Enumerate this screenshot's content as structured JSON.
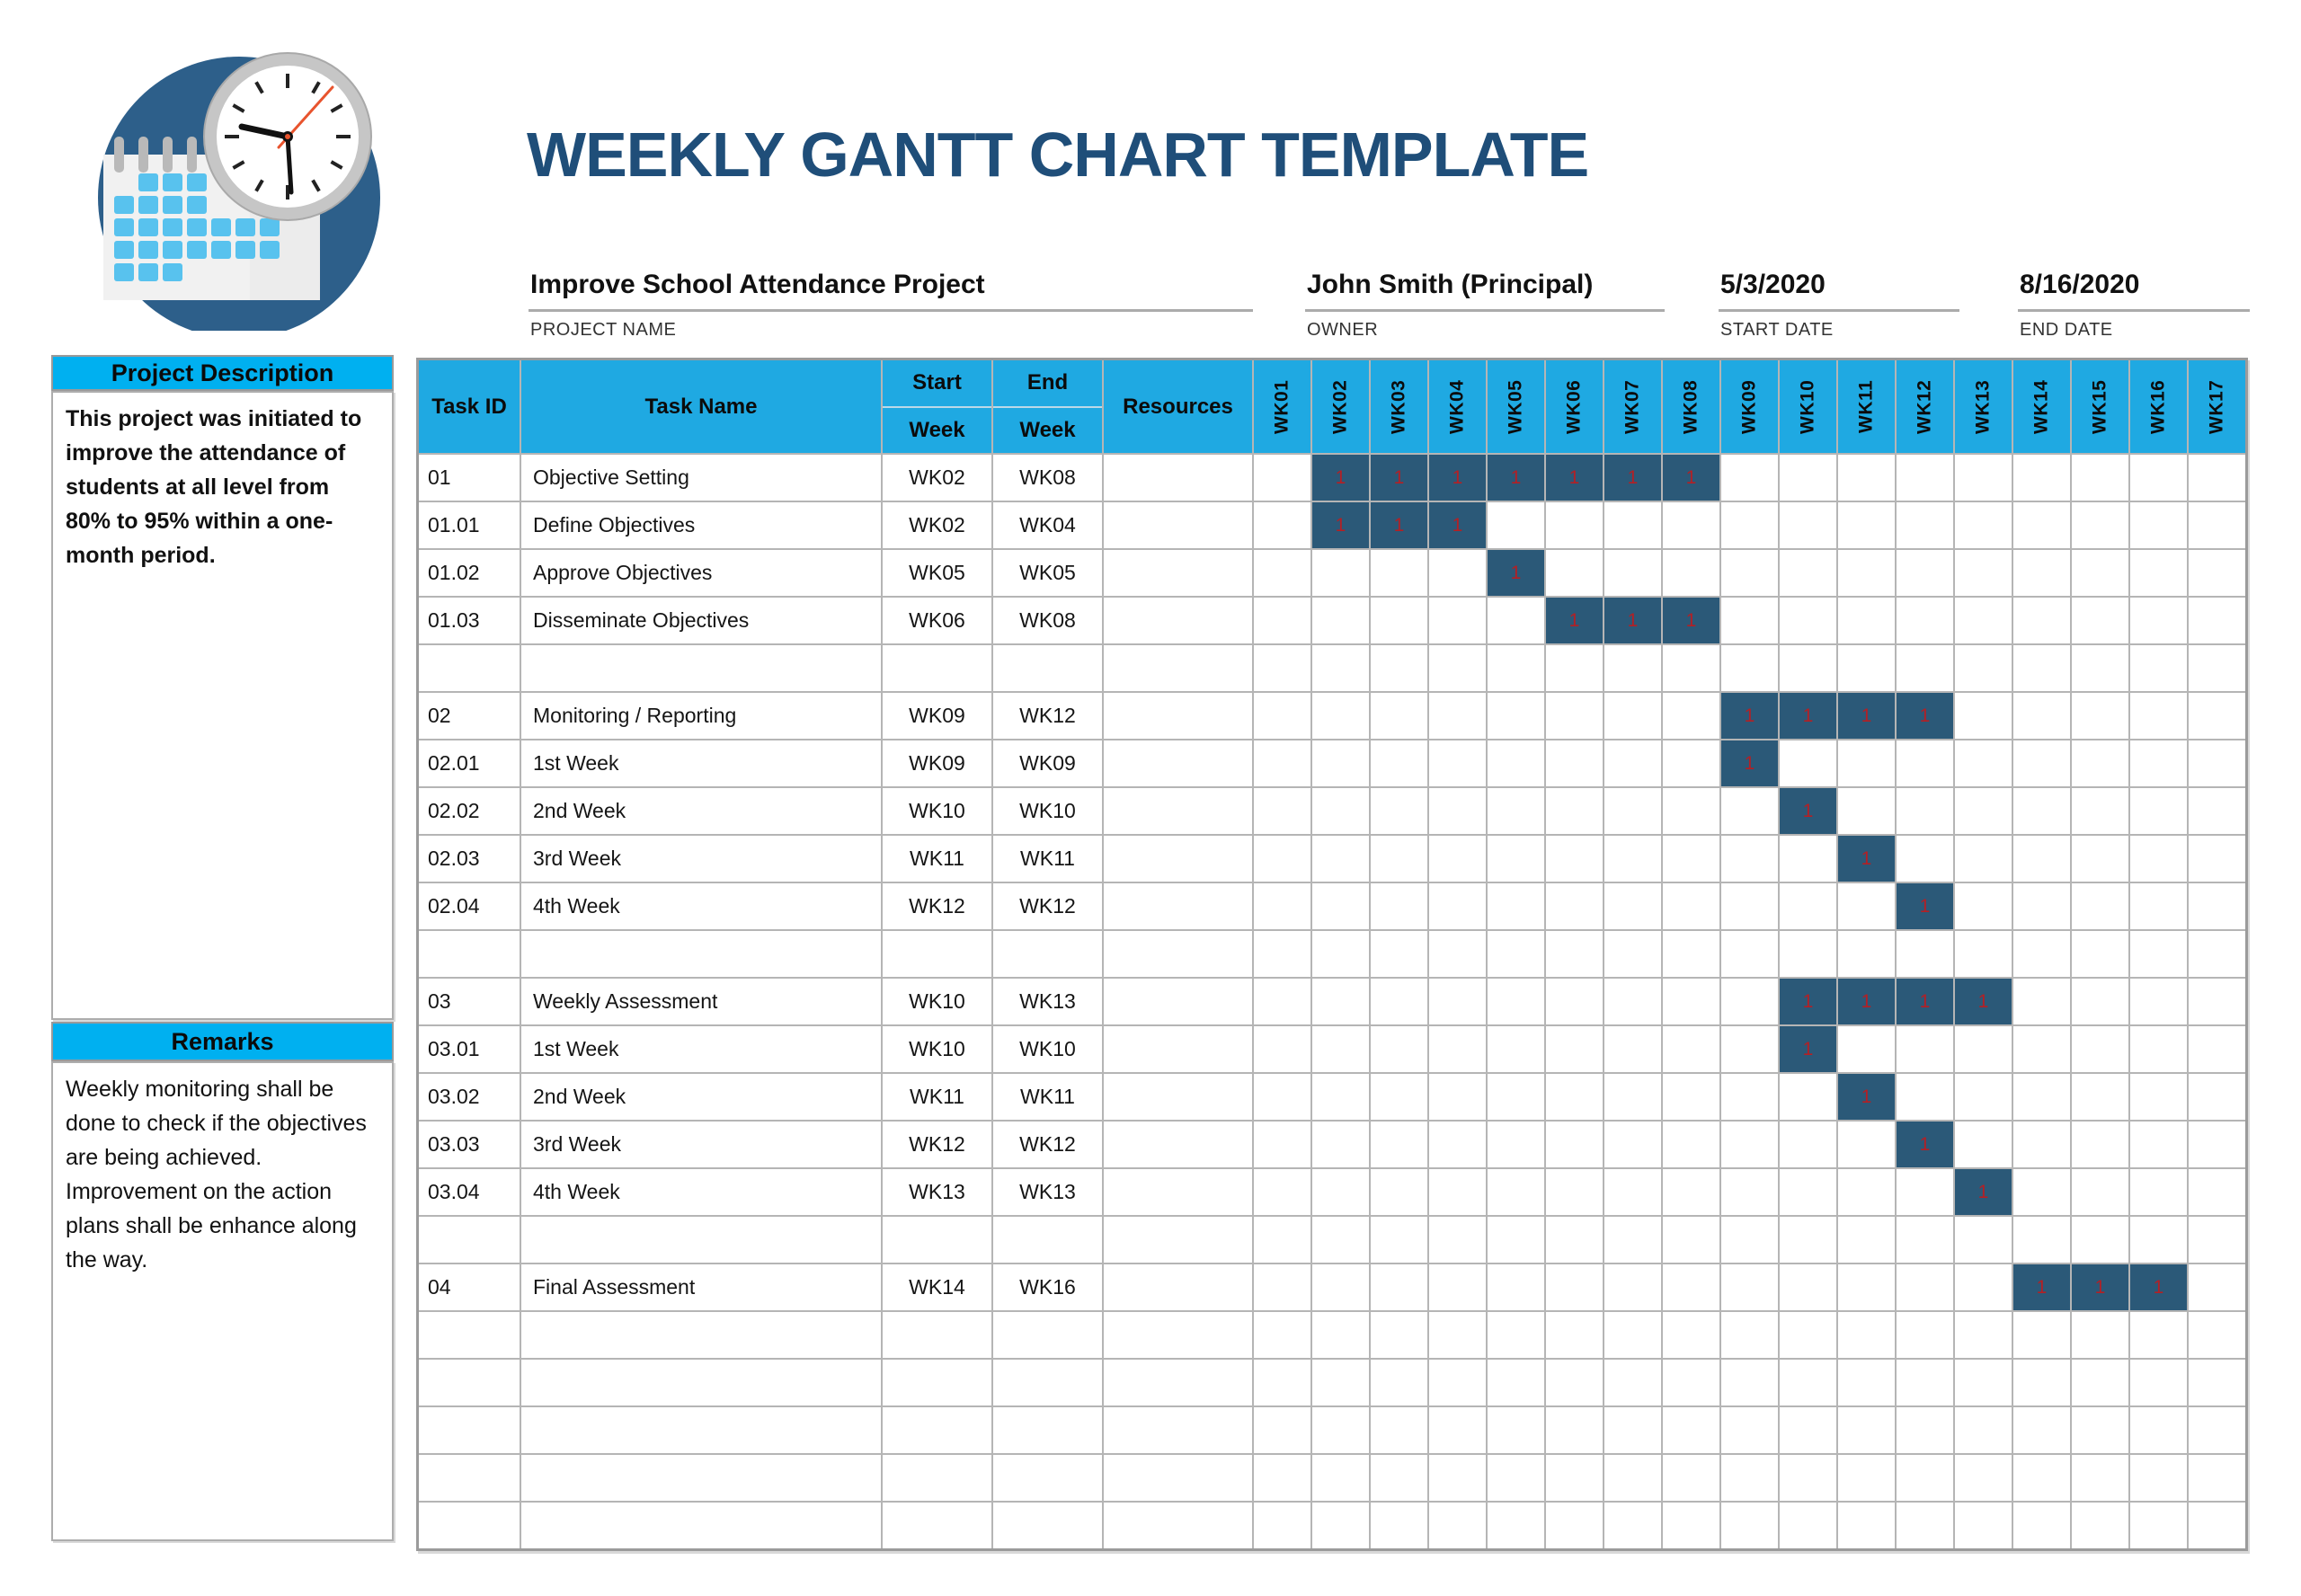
{
  "header": {
    "title": "WEEKLY GANTT CHART TEMPLATE",
    "fields": [
      {
        "value": "Improve School Attendance Project",
        "label": "PROJECT NAME"
      },
      {
        "value": "John Smith (Principal)",
        "label": "OWNER"
      },
      {
        "value": "5/3/2020",
        "label": "START DATE"
      },
      {
        "value": "8/16/2020",
        "label": "END DATE"
      }
    ]
  },
  "sidebar": {
    "description": {
      "title": "Project Description",
      "body": "This project was initiated to improve the attendance of students at all level from 80% to 95% within a one-month period."
    },
    "remarks": {
      "title": "Remarks",
      "lines": [
        "Weekly monitoring shall be done to check if the objectives are being achieved.",
        "Improvement on the action plans shall be enhance along the way."
      ]
    }
  },
  "table": {
    "columns": [
      {
        "label": "Task ID"
      },
      {
        "label": "Task Name"
      },
      {
        "label": "Start",
        "label2": "Week"
      },
      {
        "label": "End",
        "label2": "Week"
      },
      {
        "label": "Resources"
      }
    ],
    "weeks": [
      "WK01",
      "WK02",
      "WK03",
      "WK04",
      "WK05",
      "WK06",
      "WK07",
      "WK08",
      "WK09",
      "WK10",
      "WK11",
      "WK12",
      "WK13",
      "WK14",
      "WK15",
      "WK16",
      "WK17"
    ],
    "bar_value": "1",
    "rows": [
      {
        "id": "01",
        "name": "Objective Setting",
        "start": "WK02",
        "end": "WK08",
        "resources": "",
        "bar": [
          2,
          8
        ]
      },
      {
        "id": "01.01",
        "name": "Define Objectives",
        "start": "WK02",
        "end": "WK04",
        "resources": "",
        "bar": [
          2,
          4
        ]
      },
      {
        "id": "01.02",
        "name": "Approve Objectives",
        "start": "WK05",
        "end": "WK05",
        "resources": "",
        "bar": [
          5,
          5
        ]
      },
      {
        "id": "01.03",
        "name": "Disseminate Objectives",
        "start": "WK06",
        "end": "WK08",
        "resources": "",
        "bar": [
          6,
          8
        ]
      },
      {
        "id": "",
        "name": "",
        "start": "",
        "end": "",
        "resources": "",
        "bar": null
      },
      {
        "id": "02",
        "name": "Monitoring / Reporting",
        "start": "WK09",
        "end": "WK12",
        "resources": "",
        "bar": [
          9,
          12
        ]
      },
      {
        "id": "02.01",
        "name": "1st Week",
        "start": "WK09",
        "end": "WK09",
        "resources": "",
        "bar": [
          9,
          9
        ]
      },
      {
        "id": "02.02",
        "name": "2nd Week",
        "start": "WK10",
        "end": "WK10",
        "resources": "",
        "bar": [
          10,
          10
        ]
      },
      {
        "id": "02.03",
        "name": "3rd Week",
        "start": "WK11",
        "end": "WK11",
        "resources": "",
        "bar": [
          11,
          11
        ]
      },
      {
        "id": "02.04",
        "name": "4th Week",
        "start": "WK12",
        "end": "WK12",
        "resources": "",
        "bar": [
          12,
          12
        ]
      },
      {
        "id": "",
        "name": "",
        "start": "",
        "end": "",
        "resources": "",
        "bar": null
      },
      {
        "id": "03",
        "name": "Weekly Assessment",
        "start": "WK10",
        "end": "WK13",
        "resources": "",
        "bar": [
          10,
          13
        ]
      },
      {
        "id": "03.01",
        "name": "1st Week",
        "start": "WK10",
        "end": "WK10",
        "resources": "",
        "bar": [
          10,
          10
        ]
      },
      {
        "id": "03.02",
        "name": "2nd Week",
        "start": "WK11",
        "end": "WK11",
        "resources": "",
        "bar": [
          11,
          11
        ]
      },
      {
        "id": "03.03",
        "name": "3rd Week",
        "start": "WK12",
        "end": "WK12",
        "resources": "",
        "bar": [
          12,
          12
        ]
      },
      {
        "id": "03.04",
        "name": "4th Week",
        "start": "WK13",
        "end": "WK13",
        "resources": "",
        "bar": [
          13,
          13
        ]
      },
      {
        "id": "",
        "name": "",
        "start": "",
        "end": "",
        "resources": "",
        "bar": null
      },
      {
        "id": "04",
        "name": "Final Assessment",
        "start": "WK14",
        "end": "WK16",
        "resources": "",
        "bar": [
          14,
          16
        ]
      },
      {
        "id": "",
        "name": "",
        "start": "",
        "end": "",
        "resources": "",
        "bar": null
      },
      {
        "id": "",
        "name": "",
        "start": "",
        "end": "",
        "resources": "",
        "bar": null
      },
      {
        "id": "",
        "name": "",
        "start": "",
        "end": "",
        "resources": "",
        "bar": null
      },
      {
        "id": "",
        "name": "",
        "start": "",
        "end": "",
        "resources": "",
        "bar": null
      },
      {
        "id": "",
        "name": "",
        "start": "",
        "end": "",
        "resources": "",
        "bar": null
      }
    ]
  },
  "colors": {
    "title_navy": "#1F4E79",
    "table_header_cyan": "#1FA9E2",
    "sidebar_header_cyan": "#00B0F0",
    "gantt_bar": "#2B5978",
    "gantt_bar_text": "#B32025",
    "logo_circle_blue": "#2D5F8A",
    "logo_calendar_blue": "#58C2EE"
  },
  "icons": {
    "logo": "calendar-clock-logo"
  }
}
